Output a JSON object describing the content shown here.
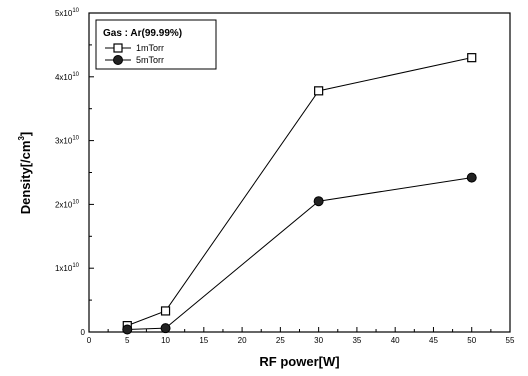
{
  "chart_data": {
    "type": "line",
    "xlabel": "RF power[W]",
    "ylabel": "Density[/cm",
    "ylabel_sup": "3",
    "ylabel_close": "]",
    "xlim": [
      0,
      55
    ],
    "ylim": [
      0,
      5
    ],
    "x_ticks": [
      "0",
      "5",
      "10",
      "15",
      "20",
      "25",
      "30",
      "35",
      "40",
      "45",
      "50",
      "55"
    ],
    "y_ticks": [
      {
        "base": "0",
        "exp": ""
      },
      {
        "base": "1x10",
        "exp": "10"
      },
      {
        "base": "2x10",
        "exp": "10"
      },
      {
        "base": "3x10",
        "exp": "10"
      },
      {
        "base": "4x10",
        "exp": "10"
      },
      {
        "base": "5x10",
        "exp": "10"
      }
    ],
    "legend": {
      "title": "Gas : Ar(99.99%)",
      "placement": "top-left"
    },
    "series": [
      {
        "name": "1mTorr",
        "marker": "open-square",
        "x": [
          5,
          10,
          30,
          50
        ],
        "y": [
          0.1,
          0.33,
          3.78,
          4.3
        ]
      },
      {
        "name": "5mTorr",
        "marker": "filled-circle",
        "x": [
          5,
          10,
          30,
          50
        ],
        "y": [
          0.04,
          0.06,
          2.05,
          2.42
        ]
      }
    ],
    "grid": false
  }
}
